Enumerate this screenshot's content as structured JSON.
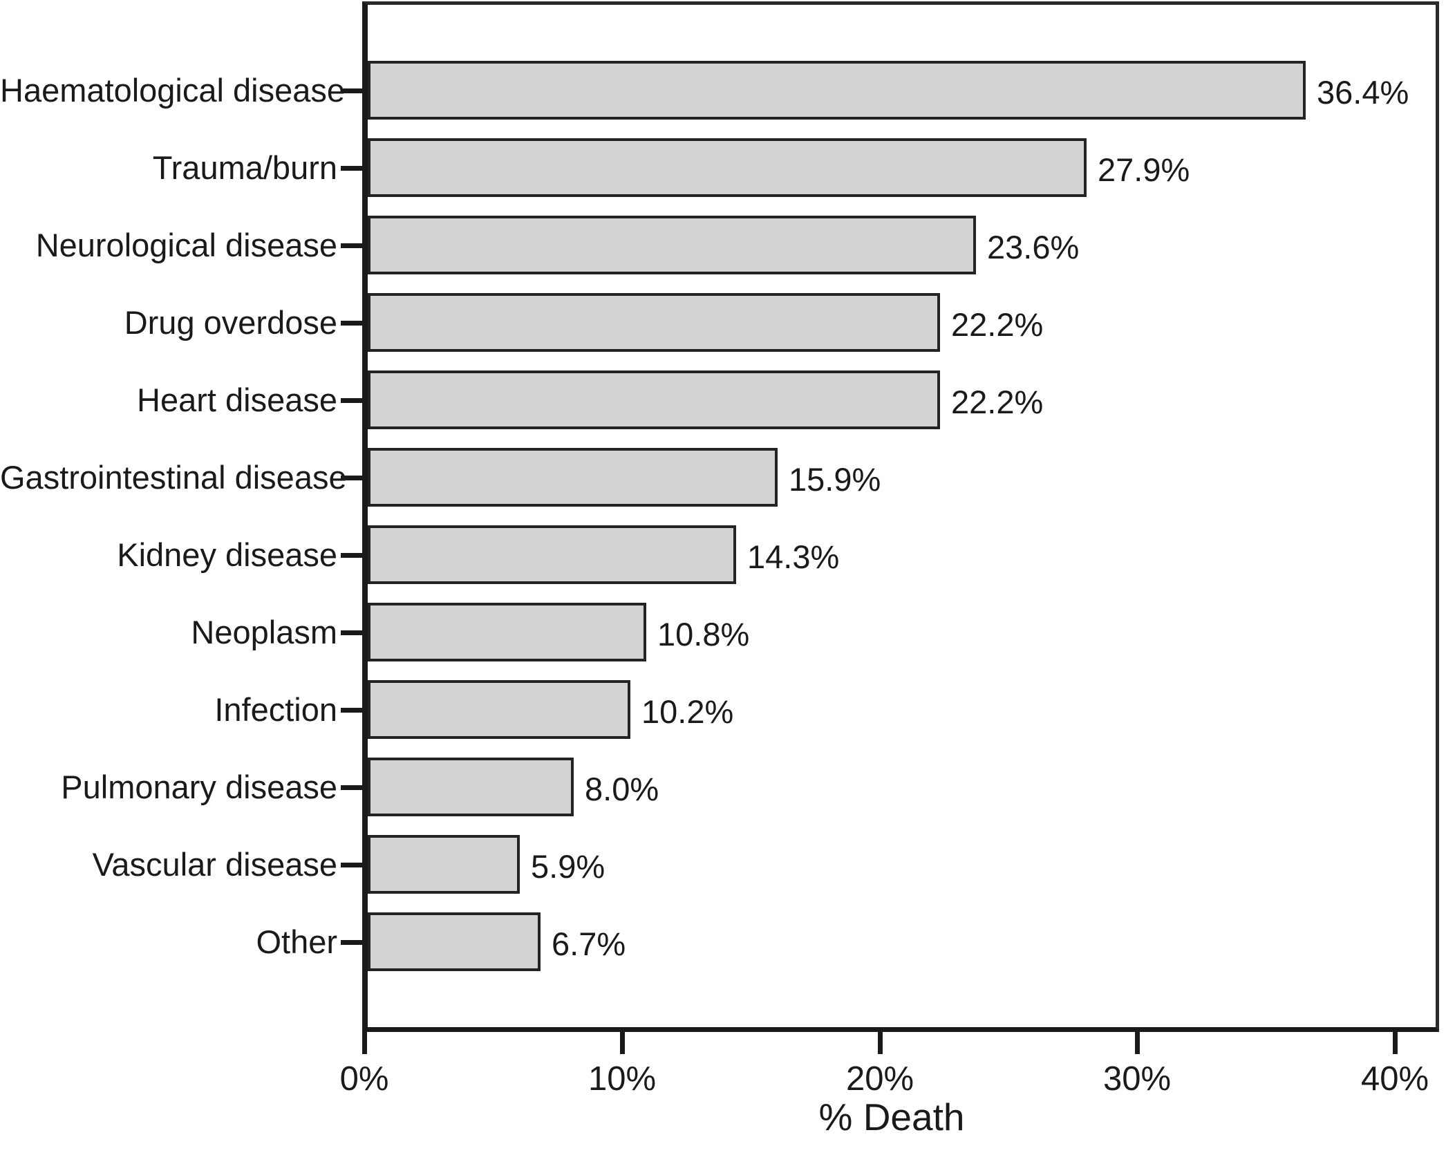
{
  "figure": {
    "background": "#ffffff"
  },
  "chart_data": {
    "type": "bar",
    "orientation": "horizontal",
    "title": "",
    "xlabel": "% Death",
    "ylabel": "",
    "categories": [
      "Haematological disease",
      "Trauma/burn",
      "Neurological disease",
      "Drug overdose",
      "Heart disease",
      "Gastrointestinal disease",
      "Kidney disease",
      "Neoplasm",
      "Infection",
      "Pulmonary disease",
      "Vascular disease",
      "Other"
    ],
    "values": [
      36.4,
      27.9,
      23.6,
      22.2,
      22.2,
      15.9,
      14.3,
      10.8,
      10.2,
      8.0,
      5.9,
      6.7
    ],
    "value_labels": [
      "36.4%",
      "27.9%",
      "23.6%",
      "22.2%",
      "22.2%",
      "15.9%",
      "14.3%",
      "10.8%",
      "10.2%",
      "8.0%",
      "5.9%",
      "6.7%"
    ],
    "x_tick_values": [
      0,
      10,
      20,
      30,
      40
    ],
    "x_tick_labels": [
      "0%",
      "10%",
      "20%",
      "30%",
      "40%"
    ],
    "xlim": [
      0,
      41.6
    ],
    "grid": false,
    "legend_position": "none",
    "colors": {
      "bar_fill": "#d2d2d2",
      "bar_border": "#232323",
      "axis": "#1a1a1a",
      "text": "#1a1a1a"
    }
  }
}
